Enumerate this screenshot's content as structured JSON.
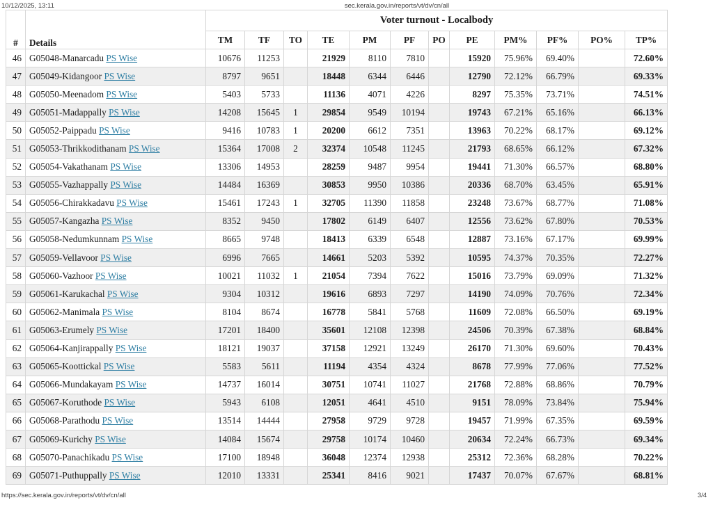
{
  "print_header": {
    "datetime": "10/12/2025, 13:11",
    "url": "sec.kerala.gov.in/reports/vt/dv/cn/all"
  },
  "print_footer": {
    "url": "https://sec.kerala.gov.in/reports/vt/dv/cn/all",
    "page": "3/4"
  },
  "colors": {
    "link": "#2e7ea3",
    "zebra_stripe": "#efefef",
    "border": "#d6d6d6"
  },
  "table": {
    "title": "Voter turnout - Localbody",
    "link_label": "PS Wise",
    "columns": [
      "#",
      "Details",
      "TM",
      "TF",
      "TO",
      "TE",
      "PM",
      "PF",
      "PO",
      "PE",
      "PM%",
      "PF%",
      "PO%",
      "TP%"
    ],
    "rows": [
      {
        "num": "46",
        "name": "G05048-Manarcadu",
        "tm": "10676",
        "tf": "11253",
        "to": "",
        "te": "21929",
        "pm": "8110",
        "pf": "7810",
        "po": "",
        "pe": "15920",
        "pmp": "75.96%",
        "pfp": "69.40%",
        "pop": "",
        "tpp": "72.60%"
      },
      {
        "num": "47",
        "name": "G05049-Kidangoor",
        "tm": "8797",
        "tf": "9651",
        "to": "",
        "te": "18448",
        "pm": "6344",
        "pf": "6446",
        "po": "",
        "pe": "12790",
        "pmp": "72.12%",
        "pfp": "66.79%",
        "pop": "",
        "tpp": "69.33%"
      },
      {
        "num": "48",
        "name": "G05050-Meenadom",
        "tm": "5403",
        "tf": "5733",
        "to": "",
        "te": "11136",
        "pm": "4071",
        "pf": "4226",
        "po": "",
        "pe": "8297",
        "pmp": "75.35%",
        "pfp": "73.71%",
        "pop": "",
        "tpp": "74.51%"
      },
      {
        "num": "49",
        "name": "G05051-Madappally",
        "tm": "14208",
        "tf": "15645",
        "to": "1",
        "te": "29854",
        "pm": "9549",
        "pf": "10194",
        "po": "",
        "pe": "19743",
        "pmp": "67.21%",
        "pfp": "65.16%",
        "pop": "",
        "tpp": "66.13%"
      },
      {
        "num": "50",
        "name": "G05052-Paippadu",
        "tm": "9416",
        "tf": "10783",
        "to": "1",
        "te": "20200",
        "pm": "6612",
        "pf": "7351",
        "po": "",
        "pe": "13963",
        "pmp": "70.22%",
        "pfp": "68.17%",
        "pop": "",
        "tpp": "69.12%"
      },
      {
        "num": "51",
        "name": "G05053-Thrikkodithanam",
        "tm": "15364",
        "tf": "17008",
        "to": "2",
        "te": "32374",
        "pm": "10548",
        "pf": "11245",
        "po": "",
        "pe": "21793",
        "pmp": "68.65%",
        "pfp": "66.12%",
        "pop": "",
        "tpp": "67.32%"
      },
      {
        "num": "52",
        "name": "G05054-Vakathanam",
        "tm": "13306",
        "tf": "14953",
        "to": "",
        "te": "28259",
        "pm": "9487",
        "pf": "9954",
        "po": "",
        "pe": "19441",
        "pmp": "71.30%",
        "pfp": "66.57%",
        "pop": "",
        "tpp": "68.80%"
      },
      {
        "num": "53",
        "name": "G05055-Vazhappally",
        "tm": "14484",
        "tf": "16369",
        "to": "",
        "te": "30853",
        "pm": "9950",
        "pf": "10386",
        "po": "",
        "pe": "20336",
        "pmp": "68.70%",
        "pfp": "63.45%",
        "pop": "",
        "tpp": "65.91%"
      },
      {
        "num": "54",
        "name": "G05056-Chirakkadavu",
        "tm": "15461",
        "tf": "17243",
        "to": "1",
        "te": "32705",
        "pm": "11390",
        "pf": "11858",
        "po": "",
        "pe": "23248",
        "pmp": "73.67%",
        "pfp": "68.77%",
        "pop": "",
        "tpp": "71.08%"
      },
      {
        "num": "55",
        "name": "G05057-Kangazha",
        "tm": "8352",
        "tf": "9450",
        "to": "",
        "te": "17802",
        "pm": "6149",
        "pf": "6407",
        "po": "",
        "pe": "12556",
        "pmp": "73.62%",
        "pfp": "67.80%",
        "pop": "",
        "tpp": "70.53%"
      },
      {
        "num": "56",
        "name": "G05058-Nedumkunnam",
        "tm": "8665",
        "tf": "9748",
        "to": "",
        "te": "18413",
        "pm": "6339",
        "pf": "6548",
        "po": "",
        "pe": "12887",
        "pmp": "73.16%",
        "pfp": "67.17%",
        "pop": "",
        "tpp": "69.99%"
      },
      {
        "num": "57",
        "name": "G05059-Vellavoor",
        "tm": "6996",
        "tf": "7665",
        "to": "",
        "te": "14661",
        "pm": "5203",
        "pf": "5392",
        "po": "",
        "pe": "10595",
        "pmp": "74.37%",
        "pfp": "70.35%",
        "pop": "",
        "tpp": "72.27%"
      },
      {
        "num": "58",
        "name": "G05060-Vazhoor",
        "tm": "10021",
        "tf": "11032",
        "to": "1",
        "te": "21054",
        "pm": "7394",
        "pf": "7622",
        "po": "",
        "pe": "15016",
        "pmp": "73.79%",
        "pfp": "69.09%",
        "pop": "",
        "tpp": "71.32%"
      },
      {
        "num": "59",
        "name": "G05061-Karukachal",
        "tm": "9304",
        "tf": "10312",
        "to": "",
        "te": "19616",
        "pm": "6893",
        "pf": "7297",
        "po": "",
        "pe": "14190",
        "pmp": "74.09%",
        "pfp": "70.76%",
        "pop": "",
        "tpp": "72.34%"
      },
      {
        "num": "60",
        "name": "G05062-Manimala",
        "tm": "8104",
        "tf": "8674",
        "to": "",
        "te": "16778",
        "pm": "5841",
        "pf": "5768",
        "po": "",
        "pe": "11609",
        "pmp": "72.08%",
        "pfp": "66.50%",
        "pop": "",
        "tpp": "69.19%"
      },
      {
        "num": "61",
        "name": "G05063-Erumely",
        "tm": "17201",
        "tf": "18400",
        "to": "",
        "te": "35601",
        "pm": "12108",
        "pf": "12398",
        "po": "",
        "pe": "24506",
        "pmp": "70.39%",
        "pfp": "67.38%",
        "pop": "",
        "tpp": "68.84%"
      },
      {
        "num": "62",
        "name": "G05064-Kanjirappally",
        "tm": "18121",
        "tf": "19037",
        "to": "",
        "te": "37158",
        "pm": "12921",
        "pf": "13249",
        "po": "",
        "pe": "26170",
        "pmp": "71.30%",
        "pfp": "69.60%",
        "pop": "",
        "tpp": "70.43%"
      },
      {
        "num": "63",
        "name": "G05065-Koottickal",
        "tm": "5583",
        "tf": "5611",
        "to": "",
        "te": "11194",
        "pm": "4354",
        "pf": "4324",
        "po": "",
        "pe": "8678",
        "pmp": "77.99%",
        "pfp": "77.06%",
        "pop": "",
        "tpp": "77.52%"
      },
      {
        "num": "64",
        "name": "G05066-Mundakayam",
        "tm": "14737",
        "tf": "16014",
        "to": "",
        "te": "30751",
        "pm": "10741",
        "pf": "11027",
        "po": "",
        "pe": "21768",
        "pmp": "72.88%",
        "pfp": "68.86%",
        "pop": "",
        "tpp": "70.79%"
      },
      {
        "num": "65",
        "name": "G05067-Koruthode",
        "tm": "5943",
        "tf": "6108",
        "to": "",
        "te": "12051",
        "pm": "4641",
        "pf": "4510",
        "po": "",
        "pe": "9151",
        "pmp": "78.09%",
        "pfp": "73.84%",
        "pop": "",
        "tpp": "75.94%"
      },
      {
        "num": "66",
        "name": "G05068-Parathodu",
        "tm": "13514",
        "tf": "14444",
        "to": "",
        "te": "27958",
        "pm": "9729",
        "pf": "9728",
        "po": "",
        "pe": "19457",
        "pmp": "71.99%",
        "pfp": "67.35%",
        "pop": "",
        "tpp": "69.59%"
      },
      {
        "num": "67",
        "name": "G05069-Kurichy",
        "tm": "14084",
        "tf": "15674",
        "to": "",
        "te": "29758",
        "pm": "10174",
        "pf": "10460",
        "po": "",
        "pe": "20634",
        "pmp": "72.24%",
        "pfp": "66.73%",
        "pop": "",
        "tpp": "69.34%"
      },
      {
        "num": "68",
        "name": "G05070-Panachikadu",
        "tm": "17100",
        "tf": "18948",
        "to": "",
        "te": "36048",
        "pm": "12374",
        "pf": "12938",
        "po": "",
        "pe": "25312",
        "pmp": "72.36%",
        "pfp": "68.28%",
        "pop": "",
        "tpp": "70.22%"
      },
      {
        "num": "69",
        "name": "G05071-Puthuppally",
        "tm": "12010",
        "tf": "13331",
        "to": "",
        "te": "25341",
        "pm": "8416",
        "pf": "9021",
        "po": "",
        "pe": "17437",
        "pmp": "70.07%",
        "pfp": "67.67%",
        "pop": "",
        "tpp": "68.81%"
      }
    ]
  }
}
